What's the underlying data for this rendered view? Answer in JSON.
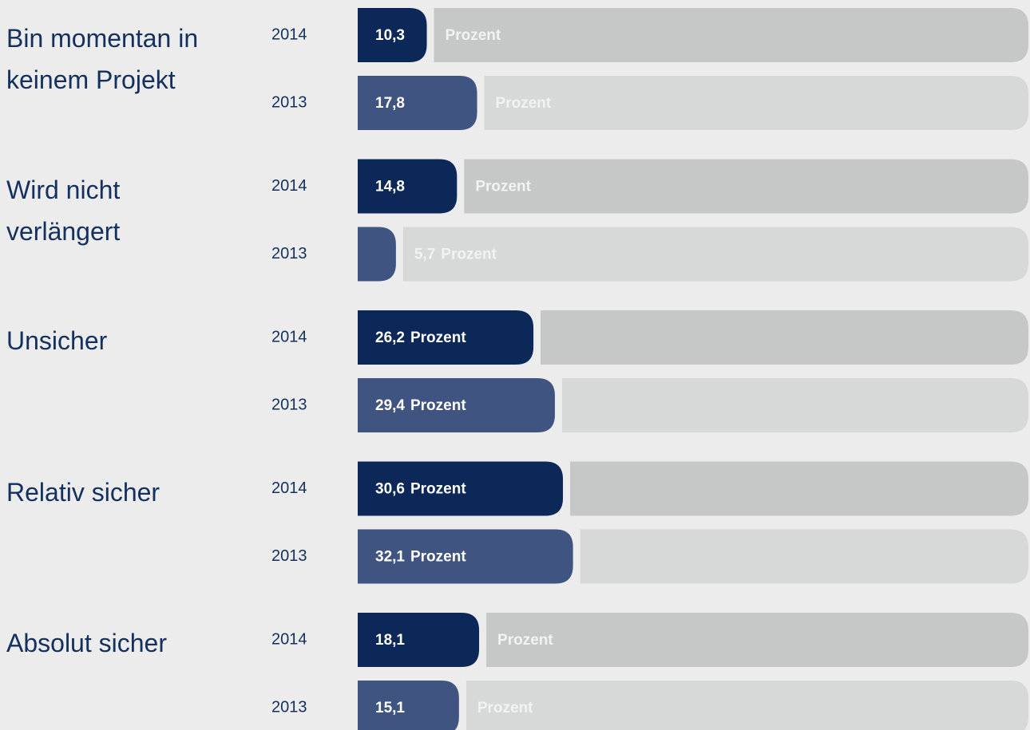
{
  "chart_data": {
    "type": "bar",
    "categories": [
      "Bin momentan in keinem Projekt",
      "Wird nicht verlängert",
      "Unsicher",
      "Relativ sicher",
      "Absolut sicher"
    ],
    "series": [
      {
        "name": "2014",
        "color": "#0b2858",
        "track_color": "#c6c7c7",
        "values": [
          10.3,
          14.8,
          26.2,
          30.6,
          18.1
        ],
        "value_labels": [
          "10,3",
          "14,8",
          "26,2",
          "30,6",
          "18,1"
        ]
      },
      {
        "name": "2013",
        "color": "#3f5480",
        "track_color": "#d7d8d8",
        "values": [
          17.8,
          5.7,
          29.4,
          32.1,
          15.1
        ],
        "value_labels": [
          "17,8",
          "5,7",
          "29,4",
          "32,1",
          "15,1"
        ]
      }
    ],
    "unit_label": "Prozent",
    "xlim": [
      0,
      100
    ]
  }
}
